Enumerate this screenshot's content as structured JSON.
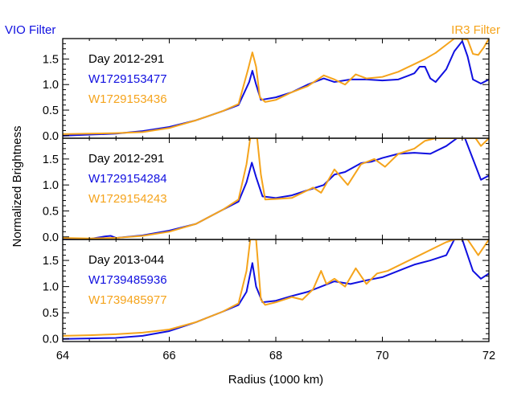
{
  "figure": {
    "left_label": "VIO Filter",
    "right_label": "IR3 Filter",
    "colors": {
      "vio": "#1010e0",
      "ir3": "#f5a41c",
      "text": "#000000"
    }
  },
  "chart_data": {
    "type": "line",
    "xlabel": "Radius (1000 km)",
    "ylabel": "Normalized Brightness",
    "xlim": [
      64,
      72
    ],
    "x_ticks": [
      64,
      66,
      68,
      70,
      72
    ],
    "ylim": [
      -0.05,
      1.9
    ],
    "y_ticks": [
      0.0,
      0.5,
      1.0,
      1.5
    ],
    "y_tick_labels": [
      "0.0",
      "0.5",
      "1.0",
      "1.5"
    ],
    "panels": [
      {
        "day_label": "Day 2012-291",
        "series": [
          {
            "name": "W1729153477",
            "color": "#1010e0",
            "points": [
              [
                64,
                0.0
              ],
              [
                64.5,
                0.02
              ],
              [
                65,
                0.04
              ],
              [
                65.5,
                0.09
              ],
              [
                66,
                0.17
              ],
              [
                66.5,
                0.3
              ],
              [
                67,
                0.48
              ],
              [
                67.3,
                0.6
              ],
              [
                67.5,
                1.05
              ],
              [
                67.56,
                1.27
              ],
              [
                67.63,
                1.0
              ],
              [
                67.72,
                0.7
              ],
              [
                68.0,
                0.75
              ],
              [
                68.3,
                0.85
              ],
              [
                68.6,
                1.0
              ],
              [
                68.9,
                1.12
              ],
              [
                69.1,
                1.05
              ],
              [
                69.4,
                1.1
              ],
              [
                69.7,
                1.1
              ],
              [
                70.0,
                1.08
              ],
              [
                70.3,
                1.1
              ],
              [
                70.6,
                1.22
              ],
              [
                70.7,
                1.35
              ],
              [
                70.8,
                1.35
              ],
              [
                70.9,
                1.12
              ],
              [
                71.0,
                1.05
              ],
              [
                71.2,
                1.3
              ],
              [
                71.35,
                1.65
              ],
              [
                71.5,
                1.85
              ],
              [
                71.6,
                1.55
              ],
              [
                71.7,
                1.1
              ],
              [
                71.85,
                1.02
              ],
              [
                72.0,
                1.1
              ]
            ]
          },
          {
            "name": "W1729153436",
            "color": "#f5a41c",
            "points": [
              [
                64,
                0.03
              ],
              [
                64.5,
                0.04
              ],
              [
                65,
                0.05
              ],
              [
                65.5,
                0.07
              ],
              [
                66,
                0.15
              ],
              [
                66.5,
                0.3
              ],
              [
                67,
                0.48
              ],
              [
                67.3,
                0.62
              ],
              [
                67.48,
                1.3
              ],
              [
                67.56,
                1.63
              ],
              [
                67.63,
                1.35
              ],
              [
                67.7,
                0.75
              ],
              [
                67.8,
                0.66
              ],
              [
                68.0,
                0.7
              ],
              [
                68.3,
                0.85
              ],
              [
                68.6,
                0.97
              ],
              [
                68.9,
                1.18
              ],
              [
                69.1,
                1.1
              ],
              [
                69.3,
                1.0
              ],
              [
                69.5,
                1.2
              ],
              [
                69.7,
                1.12
              ],
              [
                70.0,
                1.15
              ],
              [
                70.3,
                1.25
              ],
              [
                70.6,
                1.4
              ],
              [
                70.8,
                1.5
              ],
              [
                71.0,
                1.62
              ],
              [
                71.2,
                1.78
              ],
              [
                71.35,
                1.9
              ],
              [
                71.45,
                1.9
              ],
              [
                71.6,
                1.88
              ],
              [
                71.7,
                1.6
              ],
              [
                71.8,
                1.58
              ],
              [
                71.9,
                1.72
              ],
              [
                72.0,
                1.9
              ]
            ]
          }
        ]
      },
      {
        "day_label": "Day 2012-291",
        "series": [
          {
            "name": "W1729154284",
            "color": "#1010e0",
            "points": [
              [
                64,
                -0.05
              ],
              [
                64.5,
                -0.04
              ],
              [
                64.8,
                0.01
              ],
              [
                64.9,
                0.02
              ],
              [
                65,
                -0.02
              ],
              [
                65.5,
                0.03
              ],
              [
                66,
                0.12
              ],
              [
                66.5,
                0.25
              ],
              [
                67,
                0.52
              ],
              [
                67.3,
                0.68
              ],
              [
                67.45,
                1.05
              ],
              [
                67.55,
                1.43
              ],
              [
                67.63,
                1.15
              ],
              [
                67.75,
                0.78
              ],
              [
                68.0,
                0.75
              ],
              [
                68.3,
                0.8
              ],
              [
                68.6,
                0.9
              ],
              [
                68.9,
                1.0
              ],
              [
                69.1,
                1.2
              ],
              [
                69.3,
                1.25
              ],
              [
                69.6,
                1.42
              ],
              [
                69.8,
                1.45
              ],
              [
                70.0,
                1.52
              ],
              [
                70.3,
                1.6
              ],
              [
                70.6,
                1.62
              ],
              [
                70.9,
                1.6
              ],
              [
                71.2,
                1.75
              ],
              [
                71.4,
                1.9
              ],
              [
                71.55,
                1.9
              ],
              [
                71.7,
                1.5
              ],
              [
                71.85,
                1.1
              ],
              [
                72.0,
                1.18
              ]
            ]
          },
          {
            "name": "W1729154243",
            "color": "#f5a41c",
            "points": [
              [
                64,
                -0.02
              ],
              [
                64.5,
                -0.03
              ],
              [
                65,
                -0.02
              ],
              [
                65.5,
                0.02
              ],
              [
                66,
                0.1
              ],
              [
                66.5,
                0.25
              ],
              [
                67,
                0.52
              ],
              [
                67.3,
                0.72
              ],
              [
                67.45,
                1.4
              ],
              [
                67.52,
                1.9
              ],
              [
                67.65,
                1.9
              ],
              [
                67.72,
                1.2
              ],
              [
                67.8,
                0.72
              ],
              [
                68.0,
                0.73
              ],
              [
                68.3,
                0.75
              ],
              [
                68.5,
                0.85
              ],
              [
                68.7,
                0.95
              ],
              [
                68.85,
                0.85
              ],
              [
                69.1,
                1.3
              ],
              [
                69.35,
                1.0
              ],
              [
                69.6,
                1.4
              ],
              [
                69.85,
                1.5
              ],
              [
                70.05,
                1.35
              ],
              [
                70.3,
                1.6
              ],
              [
                70.6,
                1.7
              ],
              [
                70.8,
                1.85
              ],
              [
                71.0,
                1.9
              ],
              [
                71.5,
                1.9
              ],
              [
                71.6,
                1.9
              ],
              [
                71.75,
                1.9
              ],
              [
                71.85,
                1.75
              ],
              [
                72.0,
                1.9
              ]
            ]
          }
        ]
      },
      {
        "day_label": "Day 2013-044",
        "series": [
          {
            "name": "W1739485936",
            "color": "#1010e0",
            "points": [
              [
                64,
                0.0
              ],
              [
                64.5,
                0.01
              ],
              [
                65,
                0.02
              ],
              [
                65.5,
                0.06
              ],
              [
                66,
                0.15
              ],
              [
                66.5,
                0.32
              ],
              [
                67,
                0.52
              ],
              [
                67.3,
                0.65
              ],
              [
                67.45,
                0.9
              ],
              [
                67.56,
                1.45
              ],
              [
                67.63,
                1.0
              ],
              [
                67.75,
                0.7
              ],
              [
                68.0,
                0.73
              ],
              [
                68.3,
                0.82
              ],
              [
                68.6,
                0.9
              ],
              [
                68.9,
                1.02
              ],
              [
                69.1,
                1.1
              ],
              [
                69.4,
                1.05
              ],
              [
                69.7,
                1.12
              ],
              [
                70.0,
                1.18
              ],
              [
                70.3,
                1.3
              ],
              [
                70.6,
                1.42
              ],
              [
                70.9,
                1.5
              ],
              [
                71.2,
                1.6
              ],
              [
                71.35,
                1.9
              ],
              [
                71.5,
                1.9
              ],
              [
                71.7,
                1.3
              ],
              [
                71.85,
                1.15
              ],
              [
                72.0,
                1.25
              ]
            ]
          },
          {
            "name": "W1739485977",
            "color": "#f5a41c",
            "points": [
              [
                64,
                0.06
              ],
              [
                64.5,
                0.07
              ],
              [
                65,
                0.09
              ],
              [
                65.5,
                0.12
              ],
              [
                66,
                0.18
              ],
              [
                66.5,
                0.32
              ],
              [
                67,
                0.52
              ],
              [
                67.3,
                0.68
              ],
              [
                67.45,
                1.3
              ],
              [
                67.52,
                1.9
              ],
              [
                67.63,
                1.9
              ],
              [
                67.72,
                0.75
              ],
              [
                67.8,
                0.65
              ],
              [
                68.0,
                0.7
              ],
              [
                68.3,
                0.8
              ],
              [
                68.5,
                0.75
              ],
              [
                68.7,
                0.95
              ],
              [
                68.85,
                1.3
              ],
              [
                68.95,
                1.05
              ],
              [
                69.1,
                1.15
              ],
              [
                69.3,
                1.0
              ],
              [
                69.5,
                1.35
              ],
              [
                69.7,
                1.05
              ],
              [
                69.9,
                1.25
              ],
              [
                70.1,
                1.3
              ],
              [
                70.4,
                1.45
              ],
              [
                70.7,
                1.6
              ],
              [
                71.0,
                1.75
              ],
              [
                71.2,
                1.85
              ],
              [
                71.35,
                1.9
              ],
              [
                71.6,
                1.9
              ],
              [
                71.8,
                1.6
              ],
              [
                71.9,
                1.75
              ],
              [
                72.0,
                1.9
              ]
            ]
          }
        ]
      }
    ]
  }
}
